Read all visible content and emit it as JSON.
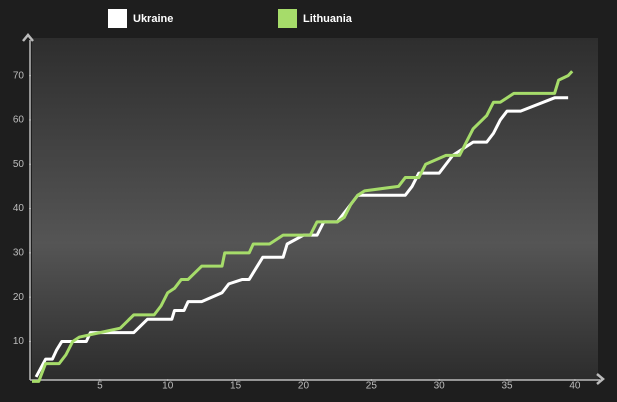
{
  "chart_data": {
    "type": "line",
    "series": [
      {
        "name": "Ukraine",
        "color": "#ffffff",
        "x": [
          0.3,
          1,
          1.5,
          1.8,
          2.2,
          4,
          4.3,
          7.5,
          8.5,
          10.3,
          10.5,
          11.2,
          11.5,
          12.5,
          14,
          14.5,
          15.5,
          16,
          17,
          18.5,
          18.8,
          20,
          21,
          21.5,
          22.5,
          23.5,
          24,
          27.5,
          28,
          28.5,
          30,
          31,
          32.5,
          33.5,
          34,
          34.5,
          35,
          36,
          38.5,
          39.5
        ],
        "values": [
          2,
          6,
          6,
          8,
          10,
          10,
          12,
          12,
          15,
          15,
          17,
          17,
          19,
          19,
          21,
          23,
          24,
          24,
          29,
          29,
          32,
          34,
          34,
          37,
          37,
          41,
          43,
          43,
          45,
          48,
          48,
          52,
          55,
          55,
          57,
          60,
          62,
          62,
          65,
          65
        ]
      },
      {
        "name": "Lithuania",
        "color": "#a6dc6a",
        "x": [
          0,
          0.5,
          1,
          2,
          2.5,
          3,
          3.5,
          5,
          6.5,
          7.5,
          9,
          9.5,
          10,
          10.5,
          11,
          11.5,
          12.5,
          14,
          14.2,
          16,
          16.3,
          17.5,
          18.5,
          20.5,
          21,
          22.5,
          23,
          23.5,
          24,
          24.5,
          27,
          27.5,
          28.5,
          29,
          30.5,
          31.5,
          32,
          32.5,
          33.5,
          34,
          34.5,
          35.5,
          38.5,
          38.8,
          39.5,
          39.8
        ],
        "values": [
          1,
          1,
          5,
          5,
          7,
          10,
          11,
          12,
          13,
          16,
          16,
          18,
          21,
          22,
          24,
          24,
          27,
          27,
          30,
          30,
          32,
          32,
          34,
          34,
          37,
          37,
          38,
          41,
          43,
          44,
          45,
          47,
          47,
          50,
          52,
          52,
          55,
          58,
          61,
          64,
          64,
          66,
          66,
          69,
          70,
          71
        ]
      }
    ],
    "xlim": [
      0,
      41.7
    ],
    "xticks": [
      5,
      10,
      15,
      20,
      25,
      30,
      35,
      40
    ],
    "ylim": [
      1.3,
      78.5
    ],
    "yticks": [
      10,
      20,
      30,
      40,
      50,
      60,
      70
    ],
    "grid": false,
    "legend": "top"
  }
}
